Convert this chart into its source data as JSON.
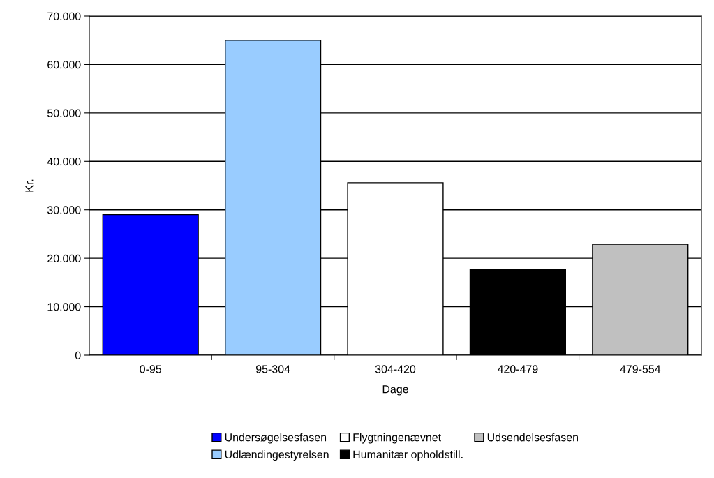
{
  "chart_data": {
    "type": "bar",
    "xlabel": "Dage",
    "ylabel": "Kr.",
    "categories": [
      "0-95",
      "95-304",
      "304-420",
      "420-479",
      "479-554"
    ],
    "series": [
      {
        "name": "Undersøgelsesfasen",
        "color": "#0000ff",
        "values": [
          29000,
          null,
          null,
          null,
          null
        ]
      },
      {
        "name": "Udlændingestyrelsen",
        "color": "#99ccff",
        "values": [
          null,
          65000,
          null,
          null,
          null
        ]
      },
      {
        "name": "Flygtningenævnet",
        "color": "#ffffff",
        "values": [
          null,
          null,
          35600,
          null,
          null
        ]
      },
      {
        "name": "Humanitær opholdstill.",
        "color": "#000000",
        "values": [
          null,
          null,
          null,
          17700,
          null
        ]
      },
      {
        "name": "Udsendelsesfasen",
        "color": "#c0c0c0",
        "values": [
          null,
          null,
          null,
          null,
          22900
        ]
      }
    ],
    "ylim": [
      0,
      70000
    ],
    "yticks": [
      {
        "value": 0,
        "label": "0"
      },
      {
        "value": 10000,
        "label": "10.000"
      },
      {
        "value": 20000,
        "label": "20.000"
      },
      {
        "value": 30000,
        "label": "30.000"
      },
      {
        "value": 40000,
        "label": "40.000"
      },
      {
        "value": 50000,
        "label": "50.000"
      },
      {
        "value": 60000,
        "label": "60.000"
      },
      {
        "value": 70000,
        "label": "70.000"
      }
    ],
    "grid": "y",
    "legend": "bottom"
  }
}
